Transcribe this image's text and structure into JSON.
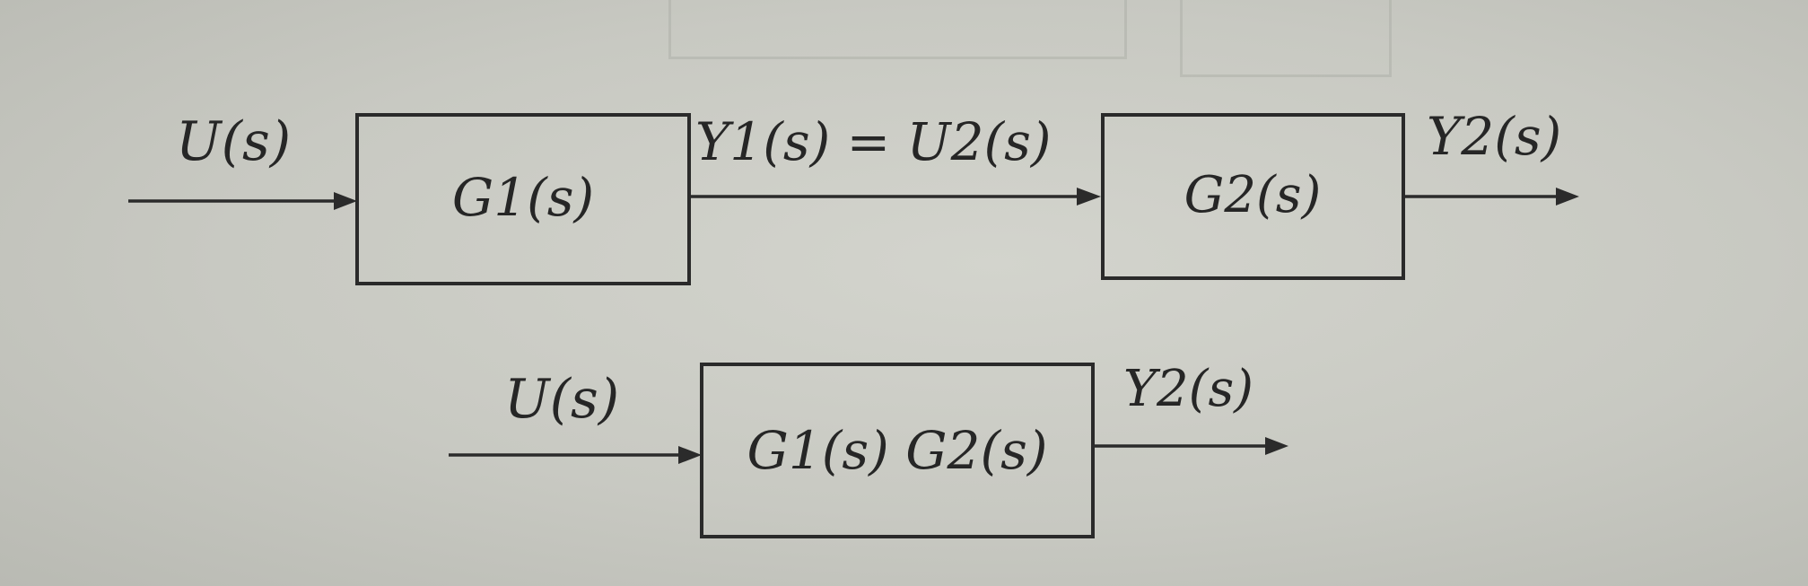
{
  "diagram": {
    "series_connection": {
      "input_label": "U(s)",
      "block_left_label": "G1(s)",
      "intermediate_label": "Y1(s) = U2(s)",
      "block_right_label": "G2(s)",
      "output_label": "Y2(s)"
    },
    "equivalent_block": {
      "input_label": "U(s)",
      "block_label": "G1(s) G2(s)",
      "output_label": "Y2(s)"
    }
  },
  "colors": {
    "paper": "#c9cac3",
    "ink": "#2b2b2b"
  }
}
